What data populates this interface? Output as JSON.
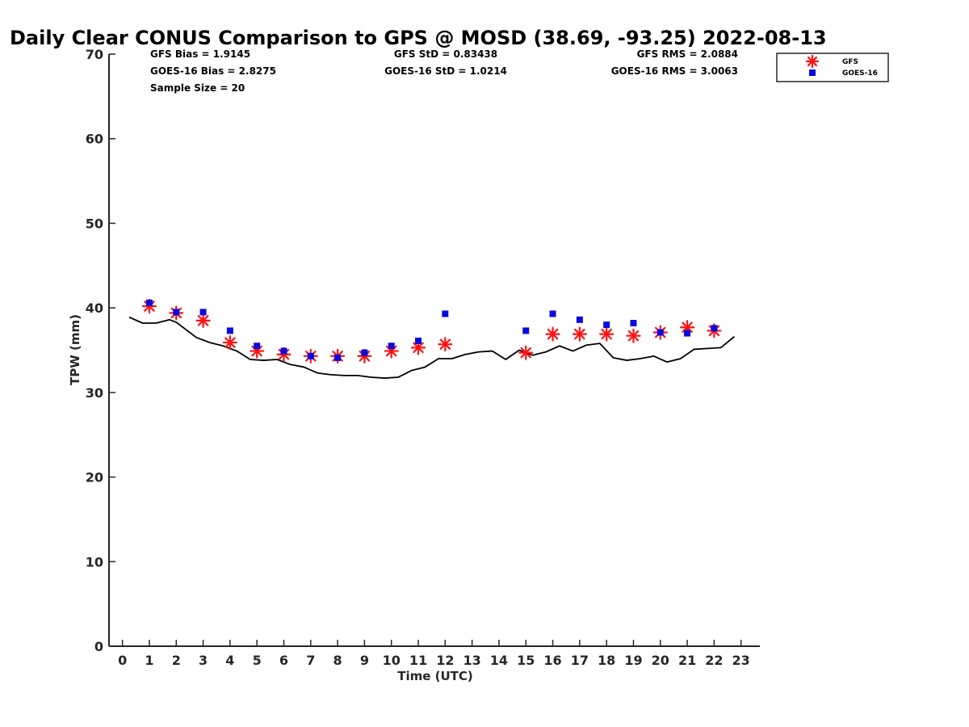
{
  "chart_data": {
    "type": "scatter",
    "title": "Daily Clear CONUS Comparison to GPS @ MOSD (38.69, -93.25) 2022-08-13",
    "xlabel": "Time (UTC)",
    "ylabel": "TPW (mm)",
    "xlim": [
      -0.5,
      23.7
    ],
    "ylim": [
      0,
      70
    ],
    "xticks": [
      0,
      1,
      2,
      3,
      4,
      5,
      6,
      7,
      8,
      9,
      10,
      11,
      12,
      13,
      14,
      15,
      16,
      17,
      18,
      19,
      20,
      21,
      22,
      23
    ],
    "yticks": [
      0,
      10,
      20,
      30,
      40,
      50,
      60,
      70
    ],
    "legend_position": "top-right",
    "stats": [
      [
        "GFS Bias = 1.9145",
        "GFS StD = 0.83438",
        "GFS RMS = 2.0884"
      ],
      [
        "GOES-16 Bias = 2.8275",
        "GOES-16 StD = 1.0214",
        "GOES-16 RMS = 3.0063"
      ],
      [
        "Sample Size = 20",
        "",
        ""
      ]
    ],
    "series": [
      {
        "name": "GPS",
        "style": "line",
        "color": "#000000",
        "in_legend": false,
        "x": [
          0.25,
          0.75,
          1.25,
          1.75,
          2.0,
          2.25,
          2.75,
          3.25,
          3.75,
          4.25,
          4.75,
          5.25,
          5.75,
          6.25,
          6.75,
          7.25,
          7.75,
          8.25,
          8.75,
          9.25,
          9.75,
          10.25,
          10.75,
          11.25,
          11.75,
          12.25,
          12.75,
          13.25,
          13.75,
          14.25,
          14.75,
          15.25,
          15.75,
          16.25,
          16.75,
          17.25,
          17.75,
          18.25,
          18.75,
          19.25,
          19.75,
          20.25,
          20.75,
          21.25,
          21.75,
          22.25,
          22.75
        ],
        "y": [
          38.9,
          38.2,
          38.2,
          38.6,
          38.3,
          37.7,
          36.5,
          35.9,
          35.5,
          34.9,
          33.9,
          33.8,
          33.9,
          33.3,
          33.0,
          32.3,
          32.1,
          32.0,
          32.0,
          31.8,
          31.7,
          31.8,
          32.6,
          33.0,
          34.0,
          34.0,
          34.5,
          34.8,
          34.9,
          33.9,
          35.0,
          34.4,
          34.8,
          35.5,
          34.9,
          35.6,
          35.8,
          34.1,
          33.8,
          34.0,
          34.3,
          33.6,
          34.0,
          35.1,
          35.2,
          35.3,
          36.6
        ]
      },
      {
        "name": "GFS",
        "style": "asterisk",
        "color": "#ff1111",
        "in_legend": true,
        "x": [
          1,
          2,
          3,
          4,
          5,
          6,
          7,
          8,
          9,
          10,
          11,
          12,
          15,
          16,
          17,
          18,
          19,
          20,
          21,
          22
        ],
        "y": [
          40.2,
          39.4,
          38.5,
          35.9,
          34.9,
          34.5,
          34.3,
          34.3,
          34.3,
          34.9,
          35.3,
          35.7,
          34.7,
          36.9,
          36.9,
          36.9,
          36.7,
          37.1,
          37.7,
          37.3
        ]
      },
      {
        "name": "GOES-16",
        "style": "square",
        "color": "#0a0adc",
        "in_legend": true,
        "x": [
          1,
          2,
          3,
          4,
          5,
          6,
          7,
          8,
          9,
          10,
          11,
          12,
          15,
          16,
          17,
          18,
          19,
          20,
          21,
          22
        ],
        "y": [
          40.6,
          39.5,
          39.5,
          37.3,
          35.5,
          34.9,
          34.3,
          34.1,
          34.7,
          35.5,
          36.1,
          39.3,
          37.3,
          39.3,
          38.6,
          38.0,
          38.2,
          37.1,
          37.0,
          37.6
        ]
      }
    ]
  }
}
